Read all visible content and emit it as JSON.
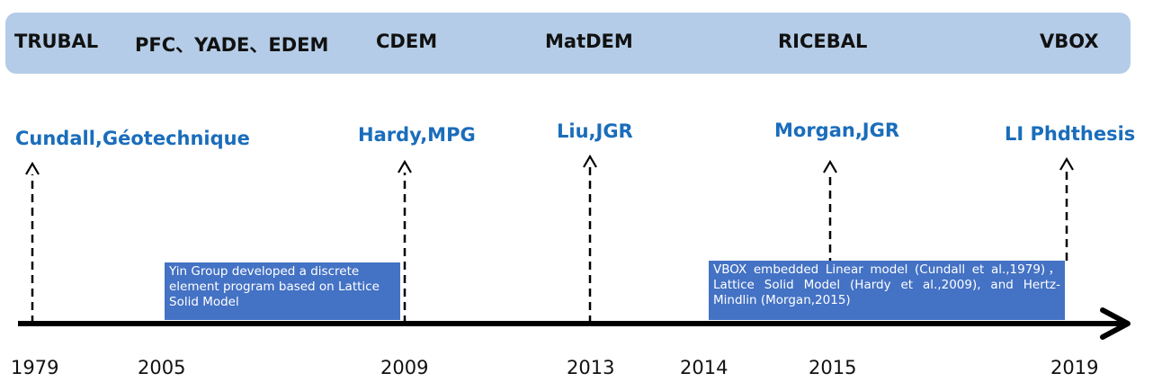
{
  "software": [
    "TRUBAL",
    "PFC、YADE、EDEM",
    "CDEM",
    "MatDEM",
    "RICEBAL",
    "VBOX"
  ],
  "publications": [
    "Cundall,Géotechnique",
    "Hardy,MPG",
    "Liu,JGR",
    "Morgan,JGR",
    "LI Phdthesis"
  ],
  "years": [
    "1979",
    "2005",
    "2009",
    "2013",
    "2014",
    "2015",
    "2019"
  ],
  "notes": {
    "yin_group": "Yin Group developed a discrete element program based on Lattice Solid Model",
    "vbox": "VBOX embedded Linear model (Cundall et al.,1979)，Lattice Solid Model (Hardy et al.,2009), and Hertz-Mindlin (Morgan,2015)"
  },
  "colors": {
    "banner": "#b4cce7",
    "publication_text": "#1a6dbb",
    "note_box": "#4472c4",
    "axis": "#000000"
  }
}
